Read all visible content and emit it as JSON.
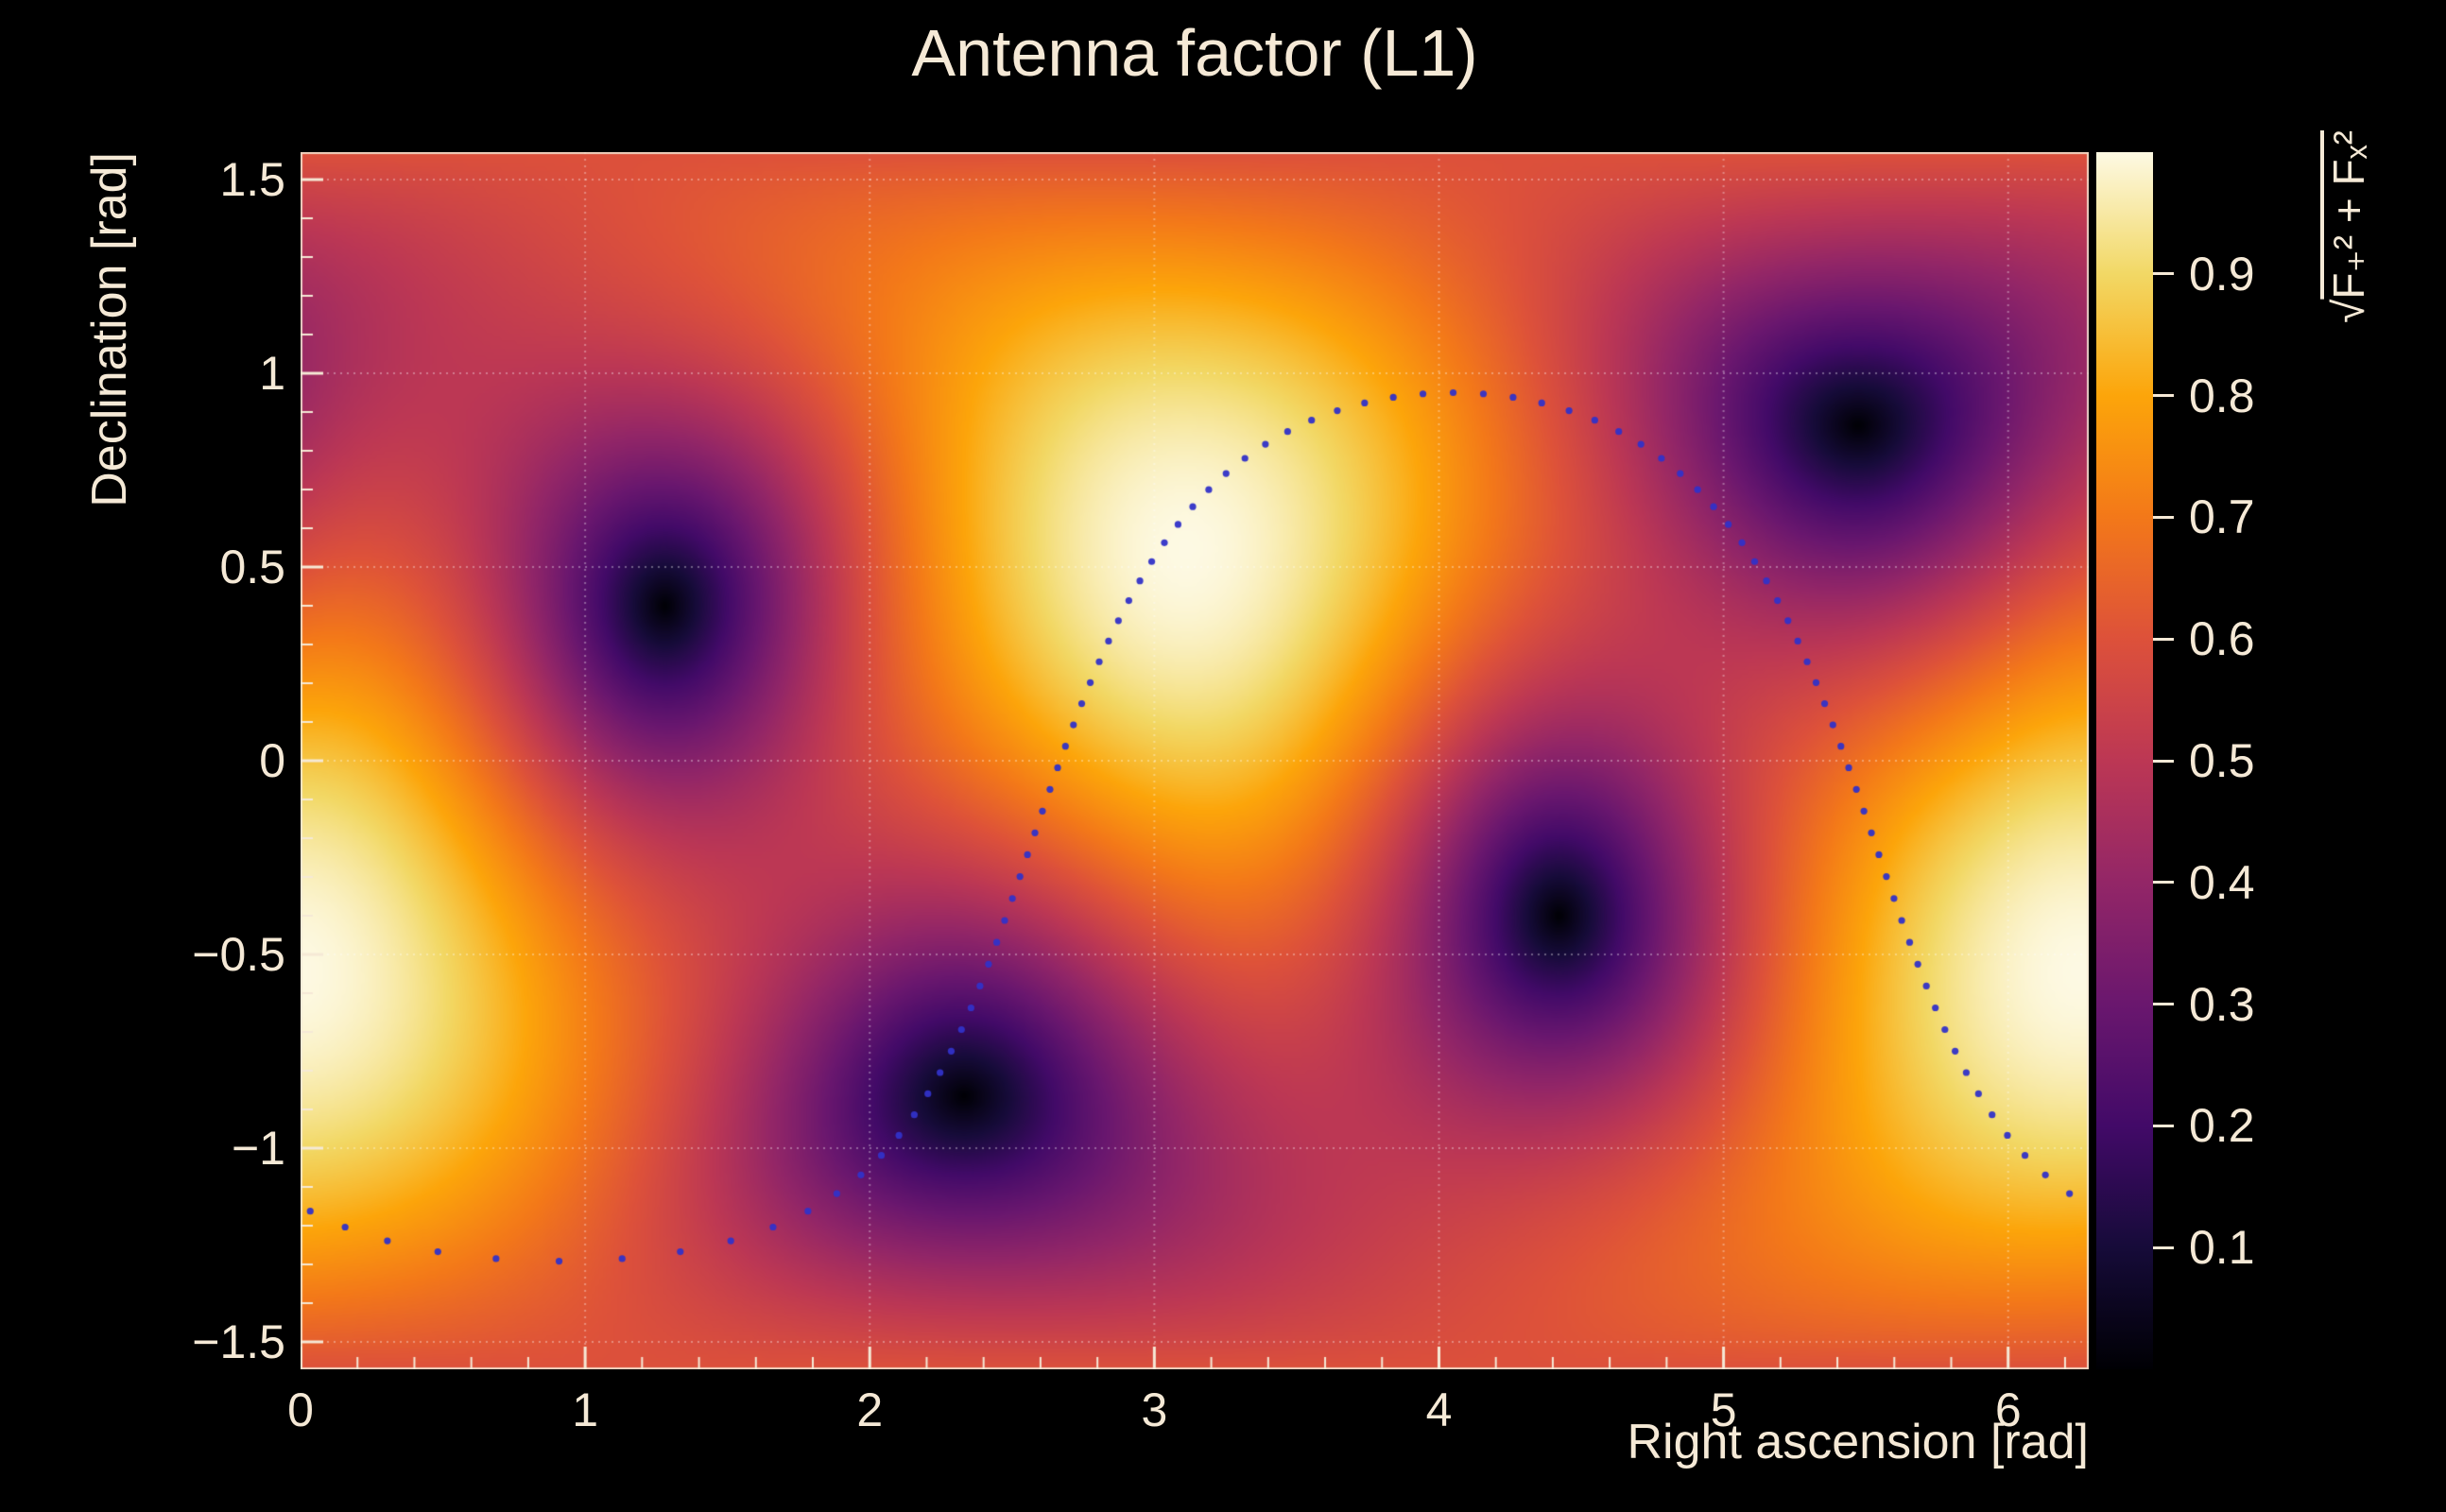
{
  "style": {
    "background": "#000000",
    "text_color": "#f5e9d6",
    "axis_color": "#f5e9d6",
    "frame_color": "#f5e9d6",
    "grid_color": "#ffffff",
    "grid_opacity": 0.35
  },
  "chart_data": {
    "type": "heatmap",
    "title": "Antenna factor (L1)",
    "xlabel": "Right ascension [rad]",
    "ylabel": "Declination [rad]",
    "colorbar_title": {
      "radical": "√",
      "radicand": "F₊² + Fₓ²"
    },
    "x_range": [
      0,
      6.2832
    ],
    "y_range": [
      -1.5708,
      1.5708
    ],
    "z_range": [
      0,
      1
    ],
    "grid": true,
    "x_ticks": [
      {
        "value": 0,
        "label": "0"
      },
      {
        "value": 1,
        "label": "1"
      },
      {
        "value": 2,
        "label": "2"
      },
      {
        "value": 3,
        "label": "3"
      },
      {
        "value": 4,
        "label": "4"
      },
      {
        "value": 5,
        "label": "5"
      },
      {
        "value": 6,
        "label": "6"
      }
    ],
    "x_minor_step": 0.2,
    "y_ticks": [
      {
        "value": 1.5,
        "label": "1.5"
      },
      {
        "value": 1.0,
        "label": "1"
      },
      {
        "value": 0.5,
        "label": "0.5"
      },
      {
        "value": 0.0,
        "label": "0"
      },
      {
        "value": -0.5,
        "label": "−0.5"
      },
      {
        "value": -1.0,
        "label": "−1"
      },
      {
        "value": -1.5,
        "label": "−1.5"
      }
    ],
    "y_minor_step": 0.1,
    "colorbar_ticks": [
      {
        "value": 0.1,
        "label": "0.1"
      },
      {
        "value": 0.2,
        "label": "0.2"
      },
      {
        "value": 0.3,
        "label": "0.3"
      },
      {
        "value": 0.4,
        "label": "0.4"
      },
      {
        "value": 0.5,
        "label": "0.5"
      },
      {
        "value": 0.6,
        "label": "0.6"
      },
      {
        "value": 0.7,
        "label": "0.7"
      },
      {
        "value": 0.8,
        "label": "0.8"
      },
      {
        "value": 0.9,
        "label": "0.9"
      }
    ],
    "colormap": {
      "name": "inferno-like",
      "stops": [
        [
          "0.0",
          "#000004"
        ],
        [
          "0.1",
          "#160b39"
        ],
        [
          "0.2",
          "#420a68"
        ],
        [
          "0.3",
          "#6a176e"
        ],
        [
          "0.4",
          "#932667"
        ],
        [
          "0.5",
          "#bc3754"
        ],
        [
          "0.6",
          "#dd513a"
        ],
        [
          "0.7",
          "#f37819"
        ],
        [
          "0.8",
          "#fca50a"
        ],
        [
          "0.9",
          "#f2d865"
        ],
        [
          "1.0",
          "#fdf9e3"
        ]
      ]
    },
    "field": {
      "description": "Root-sum-square antenna pattern sqrt(F+^2 + Fx^2) of an L-shaped interferometer, computed from its null directions",
      "null_directions": [
        {
          "ra": 1.28,
          "dec": 0.4
        },
        {
          "ra": 2.32,
          "dec": -0.86
        },
        {
          "ra": 4.42,
          "dec": -0.4
        },
        {
          "ra": 5.46,
          "dec": 0.86
        }
      ],
      "maximum_directions": [
        {
          "ra": 3.13,
          "dec": 0.54
        },
        {
          "ra": 6.27,
          "dec": -0.54
        }
      ]
    },
    "sky_ring": {
      "description": "Dotted small-circle sky ring overlay",
      "center_ra": 4.05,
      "center_dec": -0.45,
      "radius_rad": 1.4,
      "n_points": 100,
      "marker_color": "#3232c8",
      "marker_radius_px": 3.6
    }
  }
}
